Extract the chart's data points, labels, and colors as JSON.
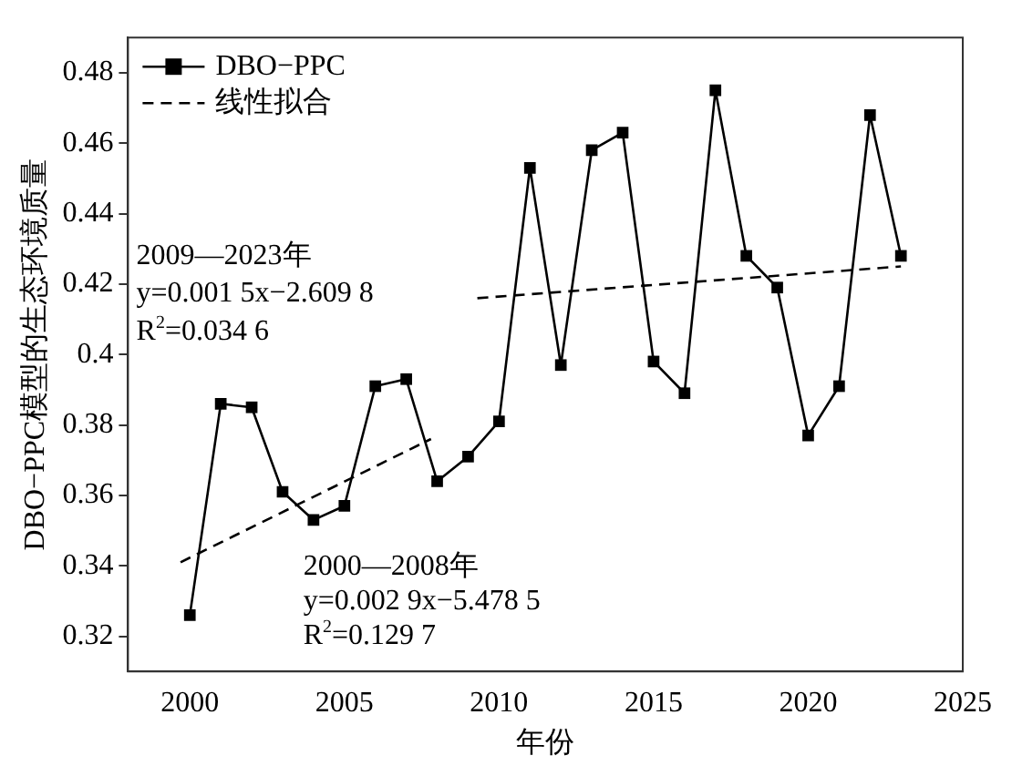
{
  "chart_data": {
    "type": "line",
    "xlabel": "年份",
    "ylabel": "DBO−PPC模型的生态环境质量",
    "x": [
      2000,
      2001,
      2002,
      2003,
      2004,
      2005,
      2006,
      2007,
      2008,
      2009,
      2010,
      2011,
      2012,
      2013,
      2014,
      2015,
      2016,
      2017,
      2018,
      2019,
      2020,
      2021,
      2022,
      2023
    ],
    "series": [
      {
        "name": "DBO−PPC",
        "color": "#000000",
        "marker": "square",
        "line_style": "solid",
        "values": [
          0.326,
          0.386,
          0.385,
          0.361,
          0.353,
          0.357,
          0.391,
          0.393,
          0.364,
          0.371,
          0.381,
          0.453,
          0.397,
          0.458,
          0.463,
          0.398,
          0.389,
          0.475,
          0.428,
          0.419,
          0.377,
          0.391,
          0.468,
          0.428
        ]
      },
      {
        "name": "线性拟合",
        "color": "#000000",
        "marker": "none",
        "line_style": "dashed",
        "x": [
          1999.7,
          2007.8
        ],
        "values": [
          0.341,
          0.376
        ]
      },
      {
        "color": "#000000",
        "marker": "none",
        "line_style": "dashed",
        "x": [
          2009.3,
          2023
        ],
        "values": [
          0.416,
          0.425
        ]
      }
    ],
    "xlim": [
      1998,
      2025
    ],
    "xticks": [
      2000,
      2005,
      2010,
      2015,
      2020,
      2025
    ],
    "ylim": [
      0.31,
      0.49
    ],
    "yticks": [
      0.32,
      0.34,
      0.36,
      0.38,
      0.4,
      0.42,
      0.44,
      0.46,
      0.48
    ],
    "grid": false,
    "legend": "top left",
    "annotations": [
      "2009—2023年",
      "y=0.001 5x−2.609 8",
      "R$^{2}$=0.034 6",
      "2000—2008年",
      "y=0.002 9x−5.478 5",
      "R$^{2}$=0.129 7"
    ]
  }
}
